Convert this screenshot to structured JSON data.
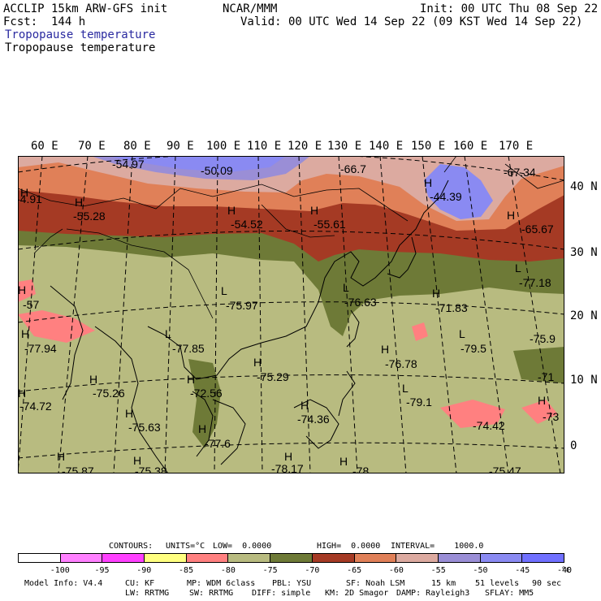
{
  "header": {
    "line1_left": "ACCLIP 15km ARW-GFS init",
    "line1_center": "NCAR/MMM",
    "line1_right": "Init: 00 UTC Thu 08 Sep 22",
    "line2_left": "Fcst:  144 h",
    "line2_right": "Valid: 00 UTC Wed 14 Sep 22 (09 KST Wed 14 Sep 22)",
    "field_title_1": "Tropopause temperature",
    "field_title_2": "Tropopause temperature"
  },
  "axes": {
    "lon_labels": [
      "60 E",
      "70 E",
      "80 E",
      "90 E",
      "100 E",
      "110 E",
      "120 E",
      "130 E",
      "140 E",
      "150 E",
      "160 E",
      "170 E"
    ],
    "lat_labels": [
      "40 N",
      "30 N",
      "20 N",
      "10 N",
      "0"
    ]
  },
  "map_labels": [
    {
      "t": "-54.97"
    },
    {
      "t": "-50.09"
    },
    {
      "t": "-66.7"
    },
    {
      "t": "-67.34"
    },
    {
      "t": "H"
    },
    {
      "t": "-4.91"
    },
    {
      "t": "H"
    },
    {
      "t": "-55.28"
    },
    {
      "t": "H"
    },
    {
      "t": "-54.52"
    },
    {
      "t": "H"
    },
    {
      "t": "-55.61"
    },
    {
      "t": "H"
    },
    {
      "t": "-44.39"
    },
    {
      "t": "H"
    },
    {
      "t": "-65.67"
    },
    {
      "t": "L"
    },
    {
      "t": "-77.18"
    },
    {
      "t": "H"
    },
    {
      "t": "-57"
    },
    {
      "t": "L"
    },
    {
      "t": "-75.97"
    },
    {
      "t": "L"
    },
    {
      "t": "-76.63"
    },
    {
      "t": "H"
    },
    {
      "t": "-71.83"
    },
    {
      "t": "H"
    },
    {
      "t": "-77.94"
    },
    {
      "t": "L"
    },
    {
      "t": "-77.85"
    },
    {
      "t": "L"
    },
    {
      "t": "-79.5"
    },
    {
      "t": "-75.9"
    },
    {
      "t": "H"
    },
    {
      "t": "-76.78"
    },
    {
      "t": "H"
    },
    {
      "t": "-75.29"
    },
    {
      "t": "H"
    },
    {
      "t": "-75.26"
    },
    {
      "t": "H"
    },
    {
      "t": "-72.56"
    },
    {
      "t": "-71"
    },
    {
      "t": "L"
    },
    {
      "t": "-79.1"
    },
    {
      "t": "H"
    },
    {
      "t": "-74.72"
    },
    {
      "t": "H"
    },
    {
      "t": "-74.36"
    },
    {
      "t": "H"
    },
    {
      "t": "-73"
    },
    {
      "t": "H"
    },
    {
      "t": "-75.63"
    },
    {
      "t": "-74.42"
    },
    {
      "t": "H"
    },
    {
      "t": "-77.6"
    },
    {
      "t": "H"
    },
    {
      "t": "H"
    },
    {
      "t": "H"
    },
    {
      "t": "-75.87"
    },
    {
      "t": "-75.38"
    },
    {
      "t": "-78.17"
    },
    {
      "t": "H"
    },
    {
      "t": "-78"
    },
    {
      "t": "-75.47"
    }
  ],
  "contours_info": {
    "contours": "CONTOURS:",
    "units": "UNITS=°C",
    "low": "LOW=  0.0000",
    "high": "HIGH=  0.0000",
    "interval": "INTERVAL=    1000.0"
  },
  "colorbar": {
    "unit": "°C",
    "labels": [
      "-100",
      "-95",
      "-90",
      "-85",
      "-80",
      "-75",
      "-70",
      "-65",
      "-60",
      "-55",
      "-50",
      "-45",
      "-40"
    ],
    "colors": [
      "#ffffff",
      "#ff80ff",
      "#ff40ff",
      "#ffff80",
      "#ff8080",
      "#b8bb80",
      "#6e7a37",
      "#a53a24",
      "#e08058",
      "#dcaaa0",
      "#9a8ed6",
      "#8a8af2",
      "#7070ff"
    ]
  },
  "model_info": {
    "line1": [
      "Model Info: V4.4",
      "CU: KF",
      "MP: WDM 6class",
      "PBL: YSU",
      "SF: Noah LSM",
      "15 km",
      "51 levels",
      "90 sec"
    ],
    "line2": [
      "LW: RRTMG",
      "SW: RRTMG",
      "DIFF: simple",
      "KM: 2D Smagor",
      "DAMP: Rayleigh3",
      "SFLAY: MM5"
    ]
  }
}
